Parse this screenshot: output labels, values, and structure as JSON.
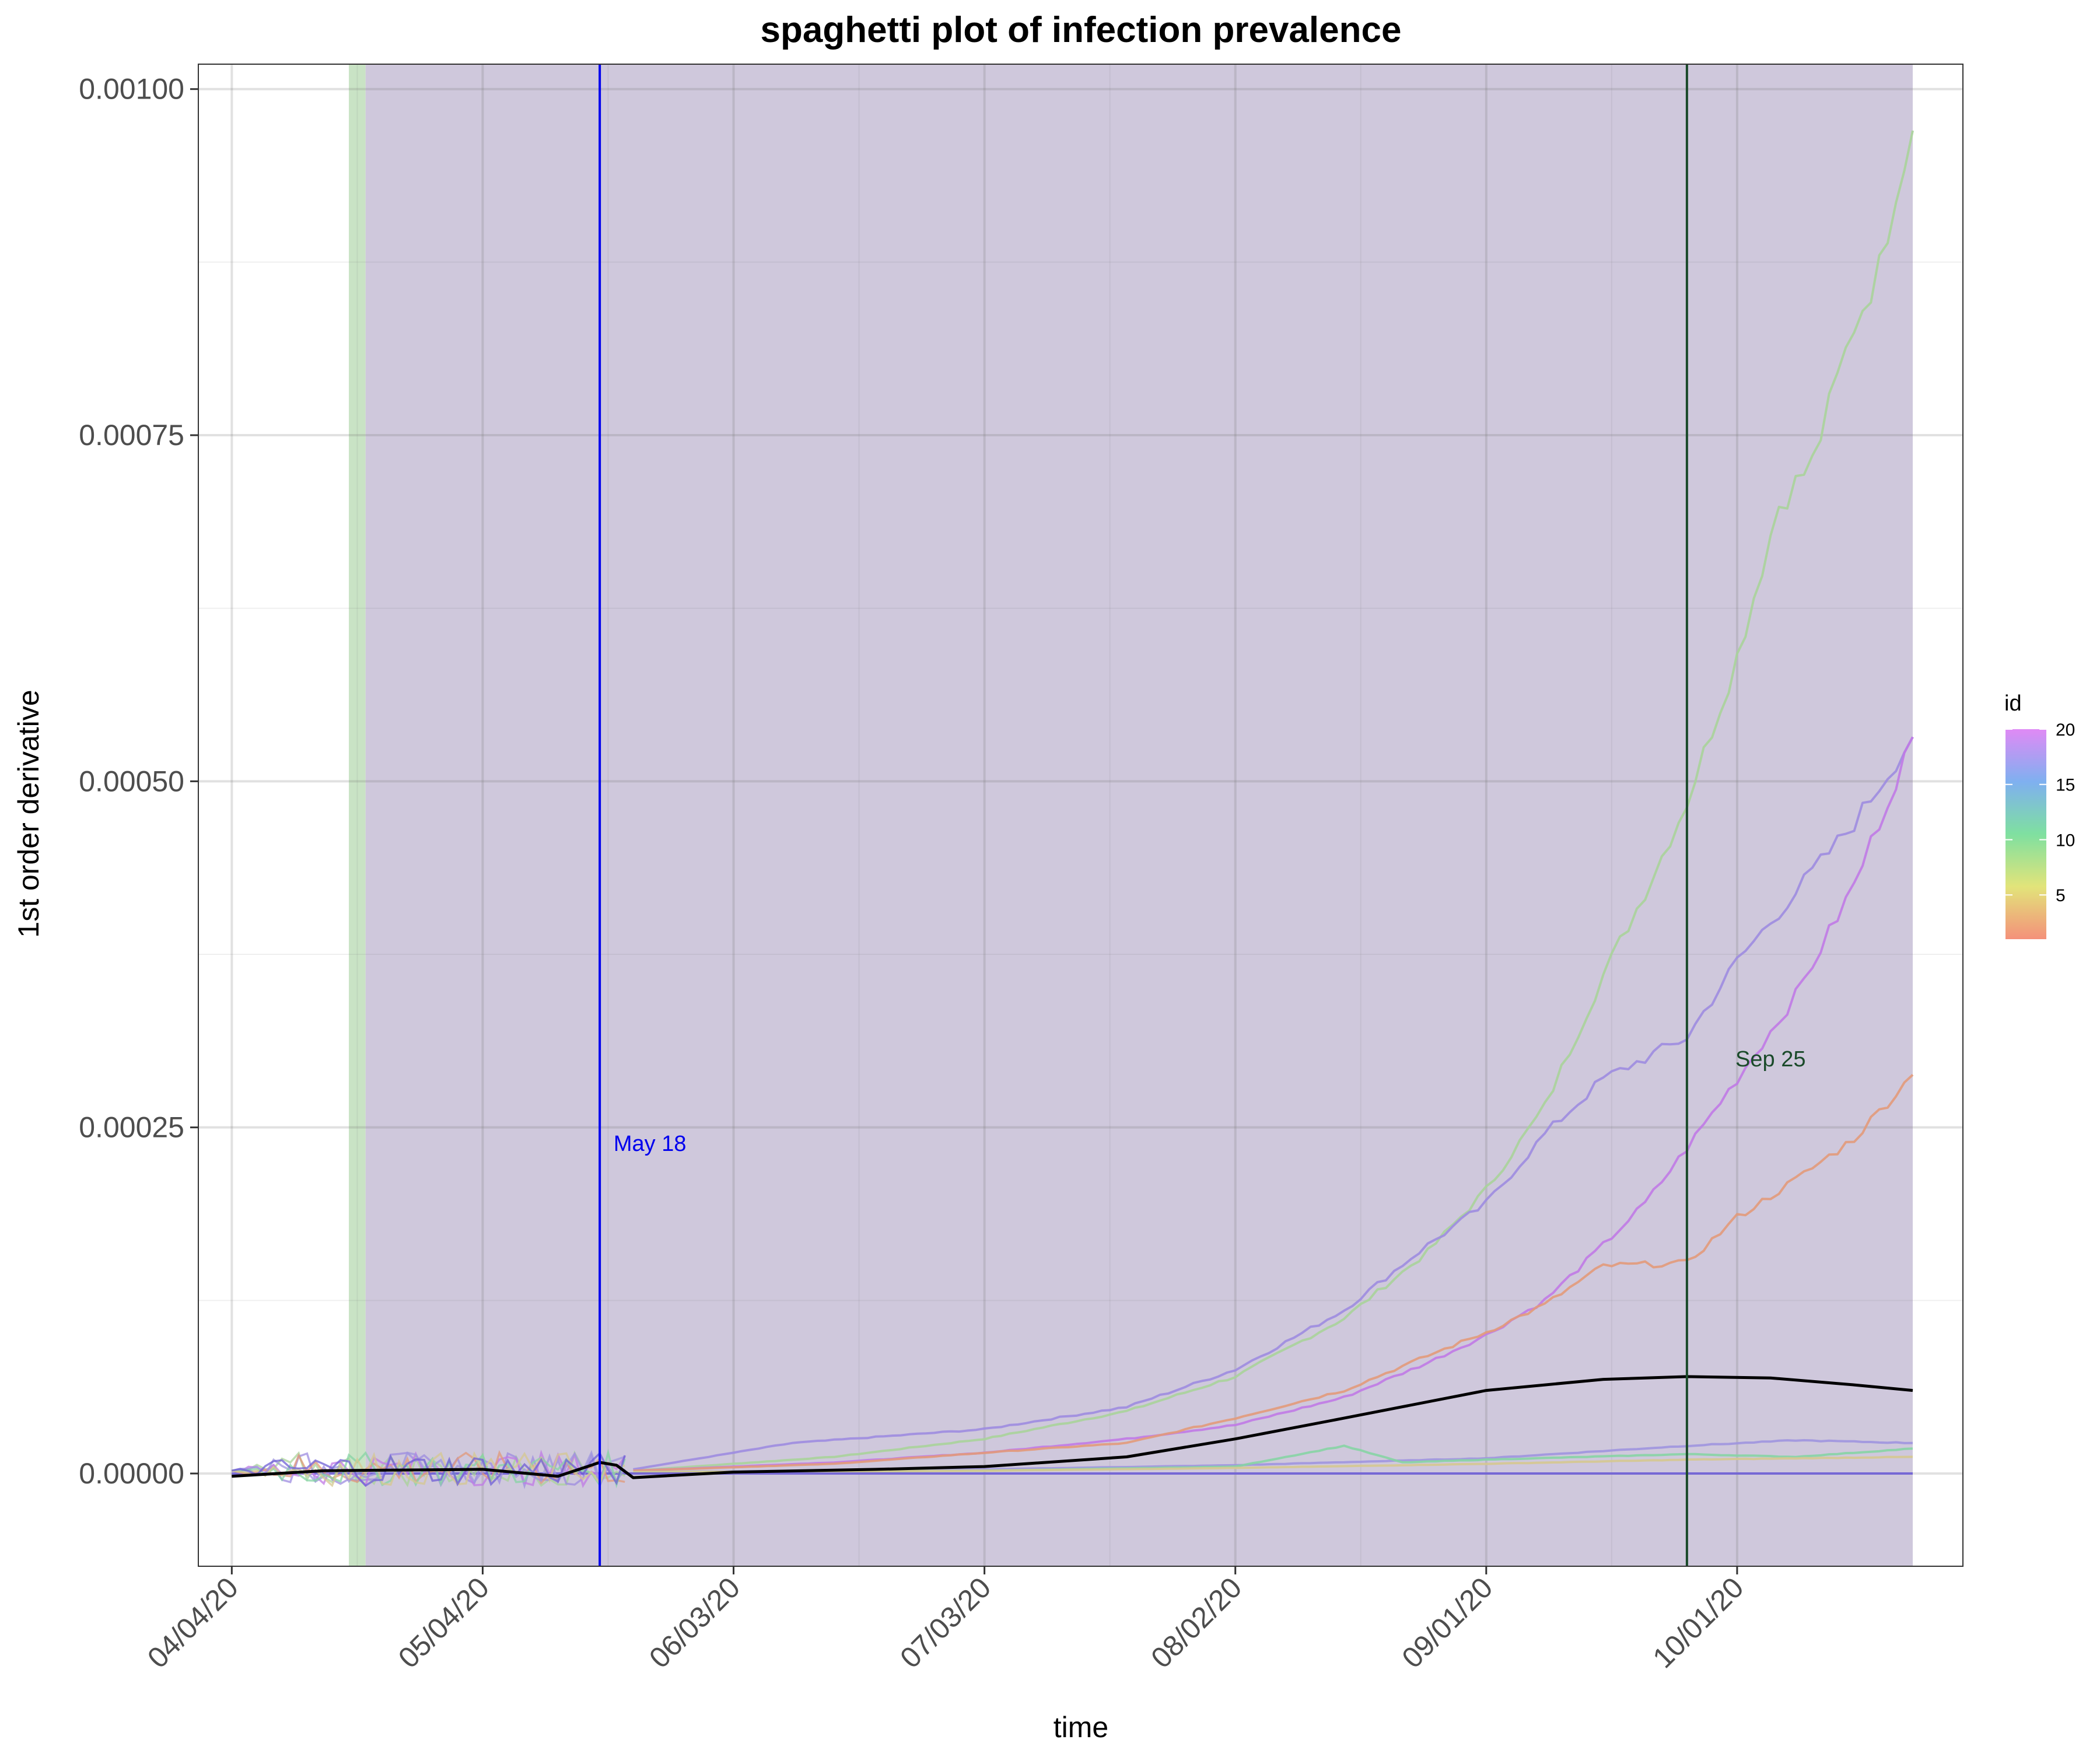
{
  "chart_data": {
    "type": "line",
    "title": "spaghetti plot of infection prevalence",
    "xlabel": "time",
    "ylabel": "1st order derivative",
    "x_range": [
      "2020-03-31",
      "2020-10-28"
    ],
    "ylim": [
      -6.7e-05,
      0.001018
    ],
    "x_ticks": [
      {
        "date": "2020-04-04",
        "label": "04/04/20"
      },
      {
        "date": "2020-05-04",
        "label": "05/04/20"
      },
      {
        "date": "2020-06-03",
        "label": "06/03/20"
      },
      {
        "date": "2020-07-03",
        "label": "07/03/20"
      },
      {
        "date": "2020-08-02",
        "label": "08/02/20"
      },
      {
        "date": "2020-09-01",
        "label": "09/01/20"
      },
      {
        "date": "2020-10-01",
        "label": "10/01/20"
      }
    ],
    "y_ticks": [
      {
        "value": 0,
        "label": "0.00000"
      },
      {
        "value": 0.00025,
        "label": "0.00025"
      },
      {
        "value": 0.0005,
        "label": "0.00050"
      },
      {
        "value": 0.00075,
        "label": "0.00075"
      },
      {
        "value": 0.001,
        "label": "0.00100"
      }
    ],
    "grid": true,
    "shaded_regions": [
      {
        "start": "2020-04-18",
        "end": "2020-04-20",
        "color": "#c9e3c5"
      },
      {
        "start": "2020-04-20",
        "end": "2020-10-22",
        "color": "#cfc8dc"
      }
    ],
    "vlines": [
      {
        "date": "2020-05-18",
        "label": "May 18",
        "color": "#0000ee",
        "label_date": "2020-05-24",
        "label_value": 0.000233
      },
      {
        "date": "2020-09-25",
        "label": "Sep 25",
        "color": "#1a4a2a",
        "label_date": "2020-10-05",
        "label_value": 0.000294
      }
    ],
    "legend": {
      "title": "id",
      "position": "right",
      "ticks": [
        20,
        15,
        10,
        5
      ],
      "range": [
        1,
        20
      ]
    },
    "series": [
      {
        "id": 6,
        "color": "#a9d39a",
        "points": [
          [
            "2020-05-22",
            2e-06
          ],
          [
            "2020-06-15",
            1.2e-05
          ],
          [
            "2020-07-03",
            2.5e-05
          ],
          [
            "2020-07-20",
            4.5e-05
          ],
          [
            "2020-08-02",
            7e-05
          ],
          [
            "2020-08-15",
            0.000112
          ],
          [
            "2020-08-25",
            0.00016
          ],
          [
            "2020-09-01",
            0.000205
          ],
          [
            "2020-09-08",
            0.000265
          ],
          [
            "2020-09-15",
            0.00036
          ],
          [
            "2020-09-20",
            0.00042
          ],
          [
            "2020-09-25",
            0.000485
          ],
          [
            "2020-10-01",
            0.00059
          ],
          [
            "2020-10-06",
            0.0007
          ],
          [
            "2020-10-10",
            0.00073
          ],
          [
            "2020-10-15",
            0.00083
          ],
          [
            "2020-10-18",
            0.00087
          ],
          [
            "2020-10-20",
            0.00093
          ],
          [
            "2020-10-22",
            0.00097
          ]
        ]
      },
      {
        "id": 17,
        "color": "#9d8ce0",
        "points": [
          [
            "2020-05-22",
            3e-06
          ],
          [
            "2020-06-10",
            2.2e-05
          ],
          [
            "2020-07-03",
            3.2e-05
          ],
          [
            "2020-07-20",
            4.8e-05
          ],
          [
            "2020-08-02",
            7.5e-05
          ],
          [
            "2020-08-15",
            0.000118
          ],
          [
            "2020-08-25",
            0.000165
          ],
          [
            "2020-09-01",
            0.000195
          ],
          [
            "2020-09-08",
            0.000245
          ],
          [
            "2020-09-15",
            0.000285
          ],
          [
            "2020-09-25",
            0.000315
          ],
          [
            "2020-10-01",
            0.00037
          ],
          [
            "2020-10-08",
            0.00042
          ],
          [
            "2020-10-15",
            0.00047
          ],
          [
            "2020-10-22",
            0.000532
          ]
        ]
      },
      {
        "id": 20,
        "color": "#c07ae6",
        "points": [
          [
            "2020-05-22",
            2e-06
          ],
          [
            "2020-06-15",
            8e-06
          ],
          [
            "2020-07-03",
            1.5e-05
          ],
          [
            "2020-07-20",
            2.5e-05
          ],
          [
            "2020-08-02",
            3.5e-05
          ],
          [
            "2020-08-15",
            5.5e-05
          ],
          [
            "2020-08-25",
            8e-05
          ],
          [
            "2020-09-01",
            0.0001
          ],
          [
            "2020-09-08",
            0.000125
          ],
          [
            "2020-09-15",
            0.000165
          ],
          [
            "2020-09-20",
            0.000195
          ],
          [
            "2020-09-25",
            0.000235
          ],
          [
            "2020-10-01",
            0.000285
          ],
          [
            "2020-10-08",
            0.000345
          ],
          [
            "2020-10-15",
            0.000425
          ],
          [
            "2020-10-22",
            0.000532
          ]
        ]
      },
      {
        "id": 1,
        "color": "#e29a7a",
        "points": [
          [
            "2020-05-22",
            2e-06
          ],
          [
            "2020-06-15",
            7e-06
          ],
          [
            "2020-07-03",
            1.5e-05
          ],
          [
            "2020-07-20",
            2.2e-05
          ],
          [
            "2020-08-02",
            4e-05
          ],
          [
            "2020-08-15",
            6e-05
          ],
          [
            "2020-08-25",
            8.5e-05
          ],
          [
            "2020-09-01",
            0.000102
          ],
          [
            "2020-09-08",
            0.000122
          ],
          [
            "2020-09-15",
            0.00015
          ],
          [
            "2020-09-25",
            0.000152
          ],
          [
            "2020-10-01",
            0.000185
          ],
          [
            "2020-10-08",
            0.000212
          ],
          [
            "2020-10-15",
            0.000242
          ],
          [
            "2020-10-22",
            0.000288
          ]
        ]
      },
      {
        "id": 16,
        "color": "#9f95df",
        "points": [
          [
            "2020-05-22",
            1e-06
          ],
          [
            "2020-07-03",
            3e-06
          ],
          [
            "2020-08-02",
            6e-06
          ],
          [
            "2020-09-01",
            1.1e-05
          ],
          [
            "2020-09-25",
            2e-05
          ],
          [
            "2020-10-08",
            2.4e-05
          ],
          [
            "2020-10-22",
            2.2e-05
          ]
        ]
      },
      {
        "id": 11,
        "color": "#86d4a4",
        "points": [
          [
            "2020-05-22",
            1e-06
          ],
          [
            "2020-07-03",
            2e-06
          ],
          [
            "2020-08-02",
            5e-06
          ],
          [
            "2020-08-15",
            2e-05
          ],
          [
            "2020-08-22",
            8e-06
          ],
          [
            "2020-09-01",
            1e-05
          ],
          [
            "2020-09-25",
            1.4e-05
          ],
          [
            "2020-10-08",
            1.2e-05
          ],
          [
            "2020-10-22",
            1.8e-05
          ]
        ]
      },
      {
        "id": 5,
        "color": "#d5c890",
        "points": [
          [
            "2020-05-22",
            1e-06
          ],
          [
            "2020-07-03",
            2e-06
          ],
          [
            "2020-08-02",
            4e-06
          ],
          [
            "2020-09-01",
            7e-06
          ],
          [
            "2020-09-25",
            1e-05
          ],
          [
            "2020-10-22",
            1.2e-05
          ]
        ]
      },
      {
        "id": 18,
        "color": "#6f5fd6",
        "points": [
          [
            "2020-04-04",
            0.0
          ],
          [
            "2020-10-22",
            0.0
          ]
        ]
      }
    ],
    "early_noise_range": [
      "2020-04-04",
      "2020-05-21"
    ],
    "early_noise_amplitude": 1.2e-05,
    "mean_curve": {
      "color": "#000000",
      "points": [
        [
          "2020-04-04",
          -2e-06
        ],
        [
          "2020-04-15",
          2e-06
        ],
        [
          "2020-05-04",
          3e-06
        ],
        [
          "2020-05-13",
          -2e-06
        ],
        [
          "2020-05-18",
          8e-06
        ],
        [
          "2020-05-20",
          6e-06
        ],
        [
          "2020-05-22",
          -3e-06
        ],
        [
          "2020-06-03",
          1e-06
        ],
        [
          "2020-06-20",
          3e-06
        ],
        [
          "2020-07-03",
          5e-06
        ],
        [
          "2020-07-20",
          1.2e-05
        ],
        [
          "2020-08-02",
          2.5e-05
        ],
        [
          "2020-08-15",
          4e-05
        ],
        [
          "2020-09-01",
          6e-05
        ],
        [
          "2020-09-15",
          6.8e-05
        ],
        [
          "2020-09-25",
          7e-05
        ],
        [
          "2020-10-05",
          6.9e-05
        ],
        [
          "2020-10-15",
          6.4e-05
        ],
        [
          "2020-10-22",
          6e-05
        ]
      ]
    }
  }
}
